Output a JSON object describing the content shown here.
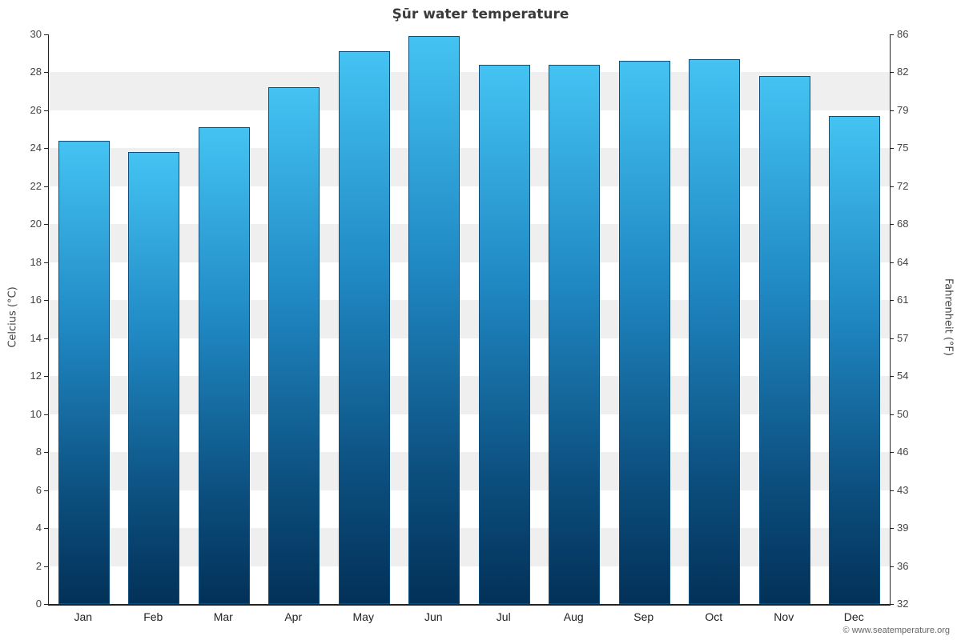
{
  "chart_data": {
    "type": "bar",
    "title": "Şūr water temperature",
    "categories": [
      "Jan",
      "Feb",
      "Mar",
      "Apr",
      "May",
      "Jun",
      "Jul",
      "Aug",
      "Sep",
      "Oct",
      "Nov",
      "Dec"
    ],
    "values": [
      24.4,
      23.8,
      25.1,
      27.2,
      29.1,
      29.9,
      28.4,
      28.4,
      28.6,
      28.7,
      27.8,
      25.7
    ],
    "ylabel_left": "Celcius (°C)",
    "ylabel_right": "Fahrenheit (°F)",
    "xlabel": "",
    "ylim": [
      0,
      30
    ],
    "y_ticks_c": [
      0,
      2,
      4,
      6,
      8,
      10,
      12,
      14,
      16,
      18,
      20,
      22,
      24,
      26,
      28,
      30
    ],
    "y_ticks_f": [
      "32",
      "36",
      "39",
      "43",
      "46",
      "50",
      "54",
      "57",
      "61",
      "64",
      "68",
      "72",
      "75",
      "79",
      "82",
      "86"
    ],
    "grid": "alternating-horizontal-bands",
    "legend": "none",
    "colors": {
      "band_light": "#ffffff",
      "band_gray": "#efefef",
      "bar_gradient_top": "#44c3f2",
      "bar_gradient_bottom": "#033158",
      "bar_border": "#0b4f7e",
      "axis": "#222222",
      "title_text": "#3a3a3a",
      "tick_text": "#444444"
    }
  },
  "footer": {
    "copyright": "© www.seatemperature.org"
  }
}
